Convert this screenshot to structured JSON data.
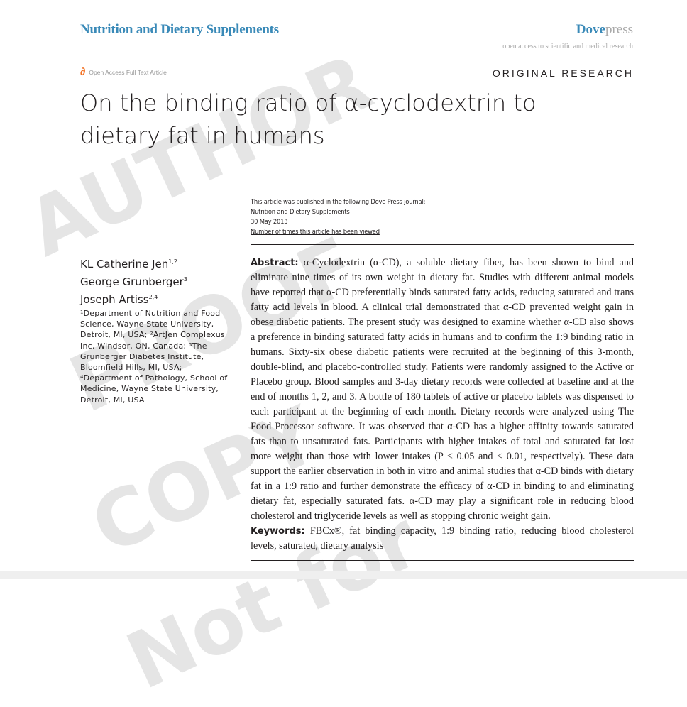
{
  "header": {
    "journal": "Nutrition and Dietary Supplements",
    "publisher_dove": "Dove",
    "publisher_press": "press",
    "tagline": "open access to scientific and medical research",
    "open_access": "Open Access Full Text Article",
    "article_type": "ORIGINAL RESEARCH"
  },
  "title": "On the binding ratio of α-cyclodextrin to dietary fat in humans",
  "pub_info": {
    "line1": "This article was published in the following Dove Press journal:",
    "journal": "Nutrition and Dietary Supplements",
    "date": "30 May 2013",
    "views_link": "Number of times this article has been viewed"
  },
  "authors": [
    {
      "name": "KL Catherine Jen",
      "sup": "1,2"
    },
    {
      "name": "George Grunberger",
      "sup": "3"
    },
    {
      "name": "Joseph Artiss",
      "sup": "2,4"
    }
  ],
  "affiliations": "¹Department of Nutrition and Food Science, Wayne State University, Detroit, MI, USA; ²ArtJen Complexus Inc, Windsor, ON, Canada; ³The Grunberger Diabetes Institute, Bloomfield Hills, MI, USA; ⁴Department of Pathology, School of Medicine, Wayne State University, Detroit, MI, USA",
  "abstract": {
    "label": "Abstract:",
    "text": "α-Cyclodextrin (α-CD), a soluble dietary fiber, has been shown to bind and eliminate nine times of its own weight in dietary fat. Studies with different animal models have reported that α-CD preferentially binds saturated fatty acids, reducing saturated and trans fatty acid levels in blood. A clinical trial demonstrated that α-CD prevented weight gain in obese diabetic patients. The present study was designed to examine whether α-CD also shows a preference in binding saturated fatty acids in humans and to confirm the 1:9 binding ratio in humans. Sixty-six obese diabetic patients were recruited at the beginning of this 3-month, double-blind, and placebo-controlled study. Patients were randomly assigned to the Active or Placebo group. Blood samples and 3-day dietary records were collected at baseline and at the end of months 1, 2, and 3. A bottle of 180 tablets of active or placebo tablets was dispensed to each participant at the beginning of each month. Dietary records were analyzed using The Food Processor software. It was observed that α-CD has a higher affinity towards saturated fats than to unsaturated fats. Participants with higher intakes of total and saturated fat lost more weight than those with lower intakes (P < 0.05 and < 0.01, respectively). These data support the earlier observation in both in vitro and animal studies that α-CD binds with dietary fat in a 1:9 ratio and further demonstrate the efficacy of α-CD in binding to and eliminating dietary fat, especially saturated fats. α-CD may play a significant role in reducing blood cholesterol and triglyceride levels as well as stopping chronic weight gain."
  },
  "keywords": {
    "label": "Keywords:",
    "text": "FBCx®, fat binding capacity, 1:9 binding ratio, reducing blood cholesterol levels, saturated, dietary analysis"
  },
  "watermark": [
    "AUTHOR",
    "PROOF",
    "COPY",
    "Not for"
  ],
  "colors": {
    "brand": "#3a8ab8",
    "open_access": "#f37021"
  }
}
